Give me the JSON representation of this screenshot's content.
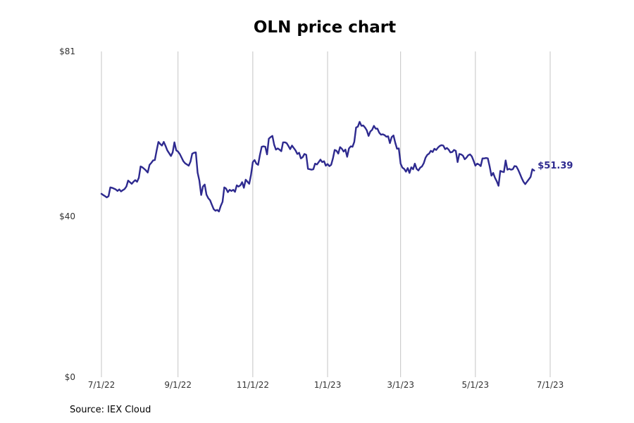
{
  "chart_data": {
    "type": "line",
    "title": "OLN price chart",
    "xlabel": "",
    "ylabel": "",
    "ylim": [
      0,
      81
    ],
    "y_ticks": [
      {
        "value": 0,
        "label": "$0"
      },
      {
        "value": 40,
        "label": "$40"
      },
      {
        "value": 81,
        "label": "$81"
      }
    ],
    "x_ticks": [
      {
        "index": 0,
        "label": "7/1/22"
      },
      {
        "index": 43,
        "label": "9/1/22"
      },
      {
        "index": 85,
        "label": "11/1/22"
      },
      {
        "index": 127,
        "label": "1/1/23"
      },
      {
        "index": 168,
        "label": "3/1/23"
      },
      {
        "index": 210,
        "label": "5/1/23"
      },
      {
        "index": 252,
        "label": "7/1/23"
      }
    ],
    "grid": "vertical",
    "line_color": "#2e2a8f",
    "last_value_label": "$51.39",
    "series": [
      {
        "name": "OLN",
        "values": [
          45.6,
          45.3,
          45.0,
          44.7,
          45.0,
          47.2,
          47.1,
          46.9,
          46.7,
          46.3,
          46.7,
          46.2,
          46.5,
          46.8,
          47.4,
          48.9,
          48.5,
          48.1,
          48.6,
          49.0,
          48.6,
          49.6,
          52.4,
          52.2,
          51.8,
          51.4,
          50.9,
          52.8,
          53.3,
          53.9,
          54.0,
          56.4,
          58.5,
          58.0,
          57.6,
          58.5,
          57.5,
          56.4,
          55.7,
          55.0,
          55.9,
          58.4,
          56.4,
          56.1,
          55.5,
          54.6,
          53.7,
          53.2,
          52.9,
          52.6,
          53.6,
          55.6,
          55.8,
          55.9,
          50.9,
          48.9,
          45.3,
          47.4,
          47.9,
          45.4,
          44.5,
          44.0,
          42.9,
          41.8,
          41.4,
          41.6,
          41.2,
          42.6,
          43.6,
          47.2,
          46.9,
          46.0,
          46.6,
          46.3,
          46.6,
          46.1,
          47.7,
          47.4,
          47.7,
          48.5,
          47.1,
          49.1,
          48.6,
          48.1,
          50.3,
          53.5,
          54.0,
          53.1,
          52.8,
          55.3,
          57.3,
          57.4,
          57.3,
          55.4,
          59.3,
          59.7,
          60.0,
          57.8,
          56.6,
          56.9,
          56.6,
          56.2,
          58.4,
          58.4,
          58.2,
          57.5,
          56.7,
          57.6,
          57.0,
          56.4,
          55.5,
          55.8,
          54.4,
          54.7,
          55.5,
          55.3,
          51.8,
          51.7,
          51.6,
          51.7,
          53.1,
          52.9,
          53.5,
          54.1,
          53.5,
          53.7,
          52.6,
          53.0,
          52.5,
          52.8,
          54.4,
          56.5,
          56.3,
          55.6,
          57.2,
          56.8,
          56.1,
          56.6,
          54.8,
          56.9,
          57.4,
          57.3,
          58.5,
          62.1,
          62.3,
          63.5,
          62.5,
          62.6,
          62.1,
          61.4,
          60.0,
          61.1,
          61.5,
          62.5,
          61.8,
          61.8,
          60.8,
          60.3,
          60.4,
          60.2,
          59.8,
          59.9,
          58.2,
          59.7,
          60.1,
          58.3,
          56.8,
          56.9,
          53.1,
          52.1,
          51.8,
          51.1,
          52.0,
          50.8,
          52.2,
          51.7,
          53.1,
          51.8,
          51.4,
          52.1,
          52.4,
          53.2,
          54.6,
          55.3,
          55.6,
          56.3,
          56.0,
          56.8,
          56.5,
          57.1,
          57.5,
          57.7,
          57.6,
          56.7,
          57.0,
          56.6,
          55.9,
          56.0,
          56.5,
          56.3,
          53.5,
          55.5,
          55.4,
          55.1,
          54.2,
          54.6,
          55.2,
          55.4,
          54.9,
          53.8,
          52.6,
          53.1,
          52.9,
          52.5,
          54.4,
          54.4,
          54.5,
          54.4,
          52.4,
          50.1,
          50.8,
          49.6,
          48.7,
          47.6,
          51.3,
          51.1,
          51.0,
          53.9,
          51.6,
          51.8,
          51.6,
          51.7,
          52.5,
          52.4,
          51.6,
          50.6,
          49.5,
          48.6,
          48.0,
          48.6,
          49.2,
          49.8,
          51.7,
          51.39
        ]
      }
    ]
  },
  "source": "Source: IEX Cloud"
}
